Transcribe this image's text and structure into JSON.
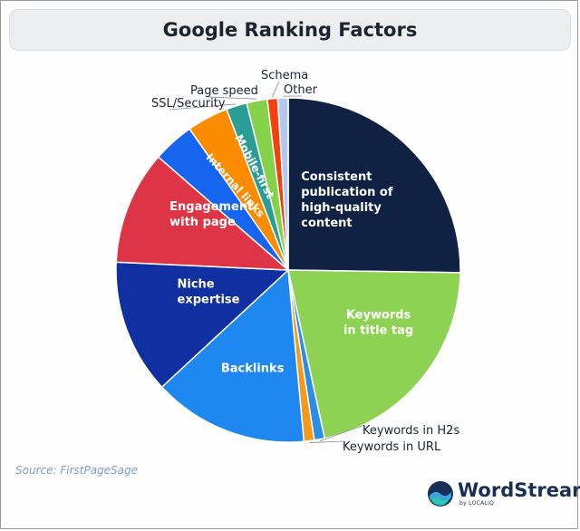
{
  "chart_data": {
    "type": "pie",
    "title": "Google Ranking Factors",
    "start_angle_deg": 0,
    "direction": "clockwise",
    "slices": [
      {
        "label": "Consistent\npublication of\nhigh-quality\ncontent",
        "value": 26,
        "color": "#0f2244",
        "text_color": "#ffffff",
        "label_style": "inside"
      },
      {
        "label": "Keywords\nin title tag",
        "value": 22,
        "color": "#8ed253",
        "text_color": "#ffffff",
        "label_style": "inside"
      },
      {
        "label": "Keywords in H2s",
        "value": 1,
        "color": "#2a8fe0",
        "text_color": "#1d2430",
        "label_style": "outside"
      },
      {
        "label": "Keywords in URL",
        "value": 1,
        "color": "#f39a1c",
        "text_color": "#1d2430",
        "label_style": "outside"
      },
      {
        "label": "Backlinks",
        "value": 15,
        "color": "#1e88f0",
        "text_color": "#ffffff",
        "label_style": "inside"
      },
      {
        "label": "Niche\nexpertise",
        "value": 13,
        "color": "#102fa0",
        "text_color": "#ffffff",
        "label_style": "inside"
      },
      {
        "label": "Engagement\nwith page",
        "value": 11,
        "color": "#dd3545",
        "text_color": "#ffffff",
        "label_style": "inside"
      },
      {
        "label": "Internal links",
        "value": 4,
        "color": "#1565ee",
        "text_color": "#ffffff",
        "label_style": "inside-rotated"
      },
      {
        "label": "Mobile-first",
        "value": 4,
        "color": "#fb8c00",
        "text_color": "#ffffff",
        "label_style": "inside-rotated"
      },
      {
        "label": "SSL/Security",
        "value": 2,
        "color": "#2a9d96",
        "text_color": "#1d2430",
        "label_style": "outside"
      },
      {
        "label": "Page speed",
        "value": 2,
        "color": "#85d24a",
        "text_color": "#1d2430",
        "label_style": "outside"
      },
      {
        "label": "Schema",
        "value": 1,
        "color": "#f2400f",
        "text_color": "#1d2430",
        "label_style": "outside"
      },
      {
        "label": "Other",
        "value": 1,
        "color": "#b4c8ee",
        "text_color": "#1d2430",
        "label_style": "outside"
      }
    ],
    "source": "Source: FirstPageSage"
  },
  "brand": {
    "name": "WordStream",
    "sub": "by LOCALiQ",
    "colors": {
      "navy": "#1a2f57",
      "blue": "#3aa3e3",
      "teal": "#2ec4b6"
    }
  }
}
